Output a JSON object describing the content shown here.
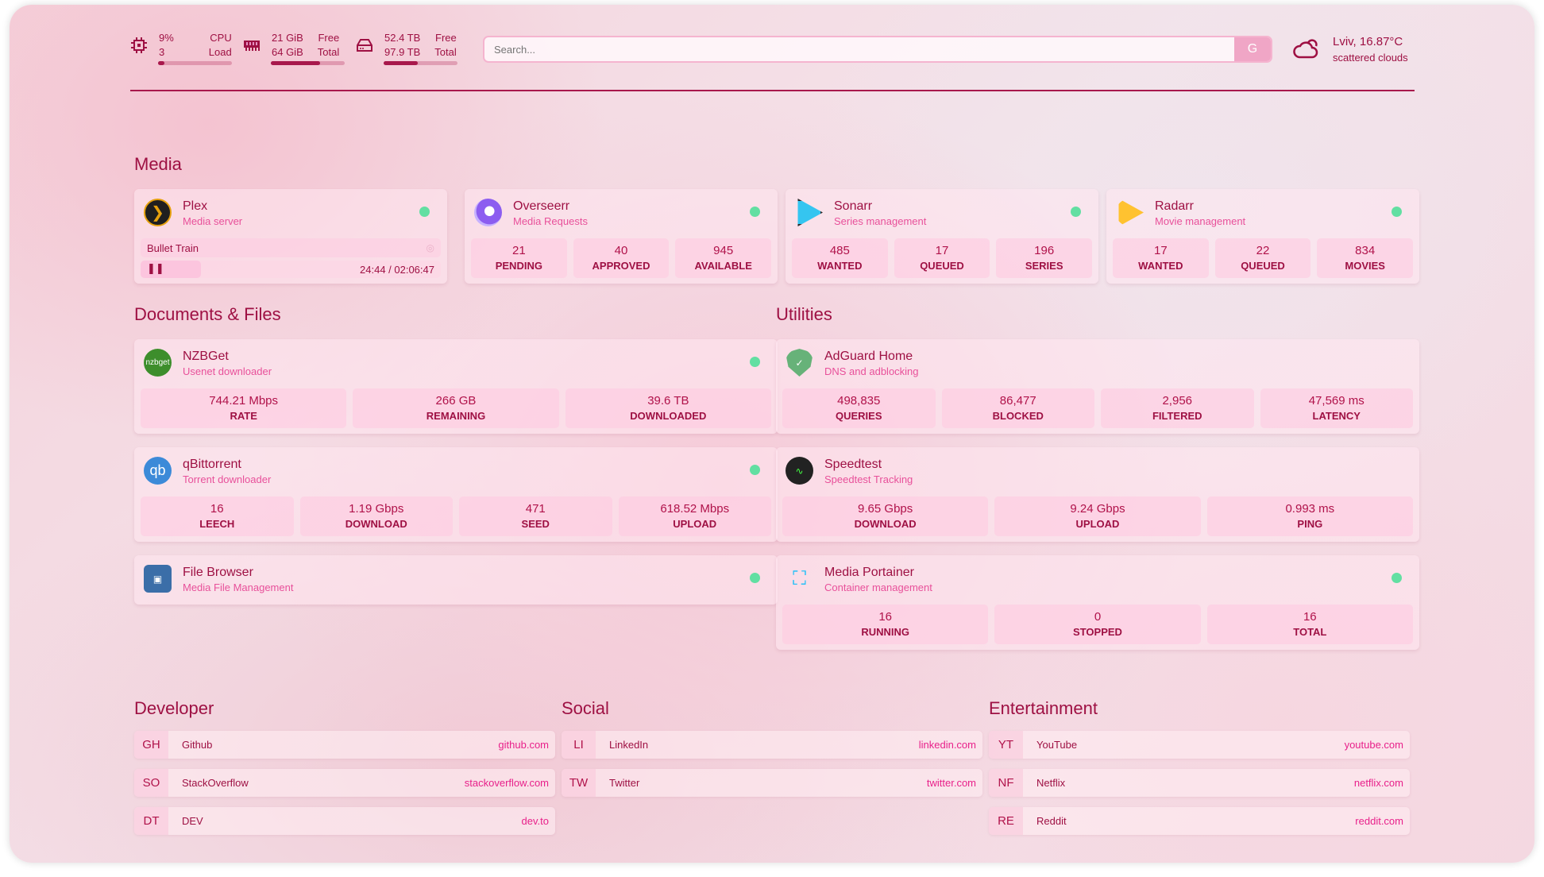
{
  "header": {
    "cpu": {
      "value": "9%",
      "label": "CPU",
      "sub": "3",
      "sub_label": "Load",
      "fill": 9
    },
    "memory": {
      "value": "21 GiB",
      "label": "Free",
      "sub": "64 GiB",
      "sub_label": "Total",
      "fill": 67
    },
    "disk": {
      "value": "52.4 TB",
      "label": "Free",
      "sub": "97.9 TB",
      "sub_label": "Total",
      "fill": 46
    },
    "search": {
      "placeholder": "Search...",
      "button": "G"
    },
    "weather": {
      "location": "Lviv, 16.87°C",
      "condition": "scattered clouds",
      "icon": "cloud-sun-icon"
    }
  },
  "colors": {
    "accent": "#9e1043",
    "pink": "#e8509a",
    "status_ok": "#62dfa2"
  },
  "sections": {
    "media": "Media",
    "documents": "Documents & Files",
    "utilities": "Utilities",
    "developer": "Developer",
    "social": "Social",
    "entertainment": "Entertainment"
  },
  "plex": {
    "name": "Plex",
    "desc": "Media server",
    "now_playing": "Bullet Train",
    "time": "24:44 / 02:06:47",
    "progress": 20
  },
  "services": [
    {
      "name": "Overseerr",
      "desc": "Media Requests",
      "icon": "overseerr-icon",
      "stats": [
        {
          "v": "21",
          "l": "PENDING"
        },
        {
          "v": "40",
          "l": "APPROVED"
        },
        {
          "v": "945",
          "l": "AVAILABLE"
        }
      ]
    },
    {
      "name": "Sonarr",
      "desc": "Series management",
      "icon": "sonarr-icon",
      "stats": [
        {
          "v": "485",
          "l": "WANTED"
        },
        {
          "v": "17",
          "l": "QUEUED"
        },
        {
          "v": "196",
          "l": "SERIES"
        }
      ]
    },
    {
      "name": "Radarr",
      "desc": "Movie management",
      "icon": "radarr-icon",
      "stats": [
        {
          "v": "17",
          "l": "WANTED"
        },
        {
          "v": "22",
          "l": "QUEUED"
        },
        {
          "v": "834",
          "l": "MOVIES"
        }
      ]
    },
    {
      "name": "NZBGet",
      "desc": "Usenet downloader",
      "icon": "nzbget-icon",
      "icon_text": "nzbget",
      "stats": [
        {
          "v": "744.21 Mbps",
          "l": "RATE"
        },
        {
          "v": "266 GB",
          "l": "REMAINING"
        },
        {
          "v": "39.6 TB",
          "l": "DOWNLOADED"
        }
      ]
    },
    {
      "name": "qBittorrent",
      "desc": "Torrent downloader",
      "icon": "qbittorrent-icon",
      "icon_text": "qb",
      "stats": [
        {
          "v": "16",
          "l": "LEECH"
        },
        {
          "v": "1.19 Gbps",
          "l": "DOWNLOAD"
        },
        {
          "v": "471",
          "l": "SEED"
        },
        {
          "v": "618.52 Mbps",
          "l": "UPLOAD"
        }
      ]
    },
    {
      "name": "File Browser",
      "desc": "Media File Management",
      "icon": "file-browser-icon",
      "stats": []
    },
    {
      "name": "AdGuard Home",
      "desc": "DNS and adblocking",
      "icon": "adguard-shield-icon",
      "stats": [
        {
          "v": "498,835",
          "l": "QUERIES"
        },
        {
          "v": "86,477",
          "l": "BLOCKED"
        },
        {
          "v": "2,956",
          "l": "FILTERED"
        },
        {
          "v": "47,569 ms",
          "l": "LATENCY"
        }
      ]
    },
    {
      "name": "Speedtest",
      "desc": "Speedtest Tracking",
      "icon": "speedtest-icon",
      "stats": [
        {
          "v": "9.65 Gbps",
          "l": "DOWNLOAD"
        },
        {
          "v": "9.24 Gbps",
          "l": "UPLOAD"
        },
        {
          "v": "0.993 ms",
          "l": "PING"
        }
      ]
    },
    {
      "name": "Media Portainer",
      "desc": "Container management",
      "icon": "portainer-icon",
      "stats": [
        {
          "v": "16",
          "l": "RUNNING"
        },
        {
          "v": "0",
          "l": "STOPPED"
        },
        {
          "v": "16",
          "l": "TOTAL"
        }
      ]
    }
  ],
  "bookmarks": {
    "developer": [
      {
        "abbr": "GH",
        "name": "Github",
        "url": "github.com"
      },
      {
        "abbr": "SO",
        "name": "StackOverflow",
        "url": "stackoverflow.com"
      },
      {
        "abbr": "DT",
        "name": "DEV",
        "url": "dev.to"
      }
    ],
    "social": [
      {
        "abbr": "LI",
        "name": "LinkedIn",
        "url": "linkedin.com"
      },
      {
        "abbr": "TW",
        "name": "Twitter",
        "url": "twitter.com"
      }
    ],
    "entertainment": [
      {
        "abbr": "YT",
        "name": "YouTube",
        "url": "youtube.com"
      },
      {
        "abbr": "NF",
        "name": "Netflix",
        "url": "netflix.com"
      },
      {
        "abbr": "RE",
        "name": "Reddit",
        "url": "reddit.com"
      }
    ]
  }
}
